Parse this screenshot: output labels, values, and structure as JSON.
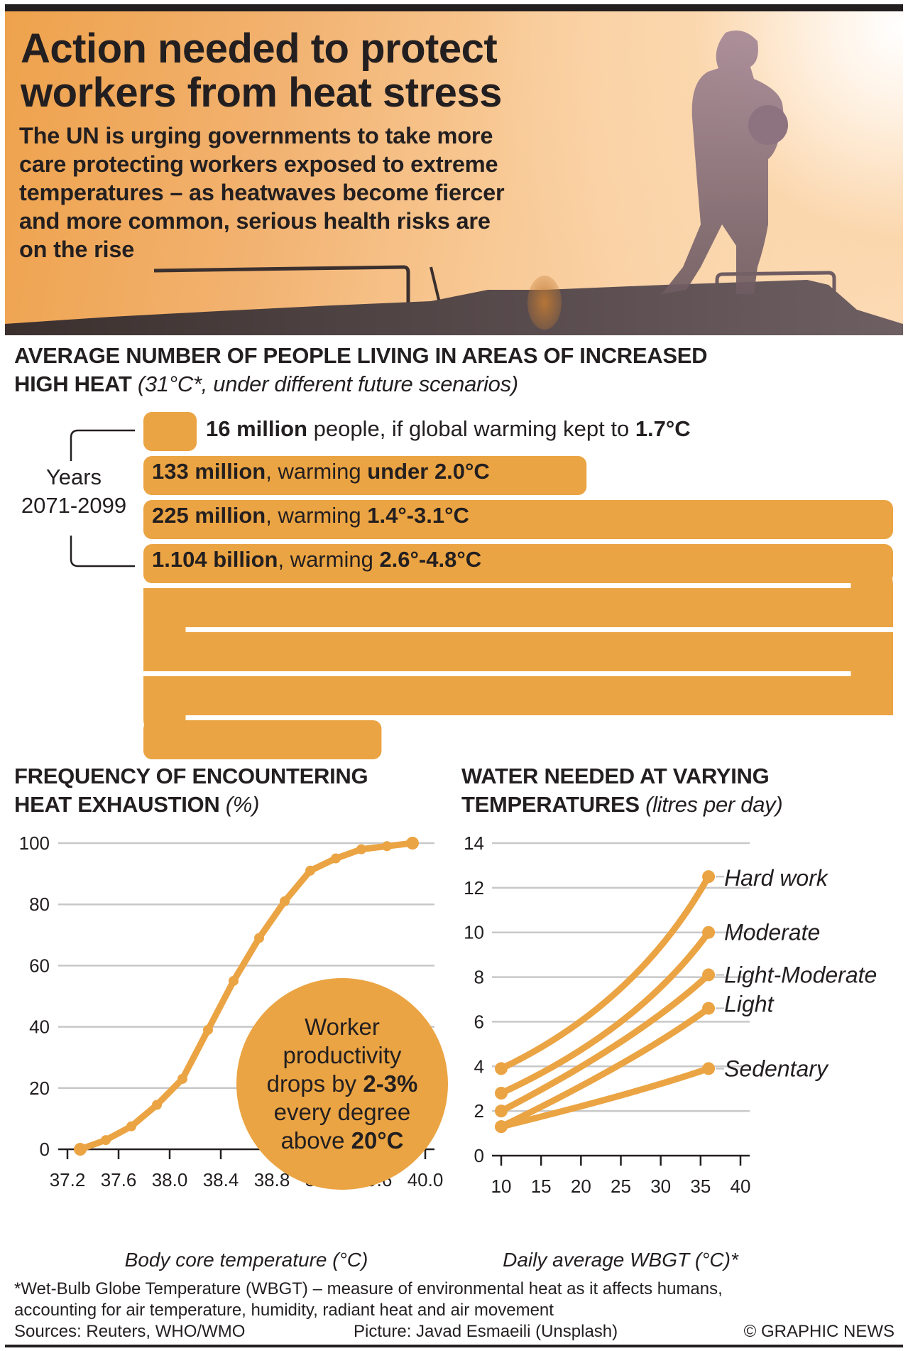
{
  "header": {
    "title_line1": "Action needed to protect",
    "title_line2": "workers from heat stress",
    "subtitle_lines": [
      "The UN is urging governments to take more",
      "care protecting workers exposed to extreme",
      "temperatures – as heatwaves become fiercer",
      "and more common, serious health risks are",
      "on the rise"
    ],
    "photo": "silhouette-of-worker-at-sunset"
  },
  "population": {
    "title_bold_line1": "AVERAGE NUMBER OF PEOPLE LIVING IN AREAS OF INCREASED",
    "title_bold_line2": "HIGH HEAT",
    "title_italic": "(31°C*, under different future scenarios)",
    "years_label": "Years",
    "years_range": "2071-2099",
    "bar_color": "#eba443",
    "rows": [
      {
        "amount": "16 million",
        "mid": " people, if global warming kept to ",
        "range": "1.7°C",
        "value_millions": 16
      },
      {
        "amount": "133 million",
        "mid": ", warming ",
        "range": "under 2.0°C",
        "value_millions": 133
      },
      {
        "amount": "225 million",
        "mid": ", warming ",
        "range": "1.4°-3.1°C",
        "value_millions": 225
      },
      {
        "amount": "1.104 billion",
        "mid": ", warming ",
        "range": "2.6°-4.8°C",
        "value_millions": 1104
      }
    ]
  },
  "heat_exhaustion": {
    "title_bold_line1": "FREQUENCY OF ENCOUNTERING",
    "title_bold_line2": "HEAT EXHAUSTION",
    "title_italic": "(%)",
    "bubble": {
      "line1": "Worker",
      "line2": "productivity",
      "line3_pre": "drops by ",
      "line3_bold": "2-3%",
      "line4": "every degree",
      "line5_pre": "above ",
      "line5_bold": "20°C"
    }
  },
  "water": {
    "title_bold_line1": "WATER NEEDED AT VARYING",
    "title_bold_line2": "TEMPERATURES",
    "title_italic": "(litres per day)"
  },
  "footer": {
    "footnote_line1": "*Wet-Bulb Globe Temperature (WBGT) – measure of environmental heat as it affects humans,",
    "footnote_line2": "accounting for air temperature, humidity, radiant heat and air movement",
    "sources": "Sources: Reuters, WHO/WMO",
    "picture": "Picture: Javad Esmaeili (Unsplash)",
    "credit": "© GRAPHIC NEWS"
  },
  "chart_data": [
    {
      "type": "bar",
      "title": "Average number of people living in areas of increased high heat (31°C*, under different future scenarios)",
      "categories": [
        "Warming kept to 1.7°C",
        "Warming under 2.0°C",
        "Warming 1.4°-3.1°C",
        "Warming 2.6°-4.8°C"
      ],
      "values": [
        16,
        133,
        225,
        1104
      ],
      "unit": "million people",
      "group_label": "Years 2071-2099"
    },
    {
      "type": "line",
      "title": "Frequency of encountering heat exhaustion (%)",
      "xlabel": "Body core temperature (°C)",
      "ylabel": "%",
      "xlim": [
        37.2,
        40.0
      ],
      "ylim": [
        0,
        100
      ],
      "xticks": [
        37.2,
        37.6,
        38.0,
        38.4,
        38.8,
        39.2,
        39.6,
        40.0
      ],
      "xtick_labels": [
        "37.2",
        "37.6",
        "38.0",
        "38.4",
        "38.8",
        "39.2",
        "39.6",
        "40.0"
      ],
      "yticks": [
        0,
        20,
        40,
        60,
        80,
        100
      ],
      "ytick_labels": [
        "0",
        "20",
        "40",
        "60",
        "80",
        "100"
      ],
      "grid": true,
      "series": [
        {
          "name": "Heat exhaustion frequency",
          "x": [
            37.3,
            37.5,
            37.7,
            37.9,
            38.1,
            38.3,
            38.5,
            38.7,
            38.9,
            39.1,
            39.3,
            39.5,
            39.7,
            39.9
          ],
          "y": [
            0,
            3,
            7.5,
            14.5,
            23,
            39,
            55,
            69,
            81,
            91,
            95,
            98,
            99,
            100
          ]
        }
      ],
      "annotation": "Worker productivity drops by 2-3% every degree above 20°C",
      "color": "#eba443"
    },
    {
      "type": "line",
      "title": "Water needed at varying temperatures (litres per day)",
      "xlabel": "Daily average WBGT (°C)*",
      "ylabel": "litres per day",
      "xlim": [
        10,
        40
      ],
      "ylim": [
        0,
        14
      ],
      "xticks": [
        10,
        15,
        20,
        25,
        30,
        35,
        40
      ],
      "xtick_labels": [
        "10",
        "15",
        "20",
        "25",
        "30",
        "35",
        "40"
      ],
      "yticks": [
        0,
        2,
        4,
        6,
        8,
        10,
        12,
        14
      ],
      "ytick_labels": [
        "0",
        "2",
        "4",
        "6",
        "8",
        "10",
        "12",
        "14"
      ],
      "grid": true,
      "legend": "inline-right",
      "series": [
        {
          "name": "Hard work",
          "x": [
            10,
            25,
            36
          ],
          "y": [
            3.9,
            7.5,
            12.5
          ]
        },
        {
          "name": "Moderate",
          "x": [
            10,
            25,
            36
          ],
          "y": [
            2.8,
            6.0,
            10.0
          ]
        },
        {
          "name": "Light-Moderate",
          "x": [
            10,
            25,
            36
          ],
          "y": [
            2.0,
            5.1,
            8.1
          ]
        },
        {
          "name": "Light",
          "x": [
            10,
            25,
            36
          ],
          "y": [
            1.3,
            4.1,
            6.6
          ]
        },
        {
          "name": "Sedentary",
          "x": [
            10,
            25,
            36
          ],
          "y": [
            1.3,
            2.7,
            3.9
          ]
        }
      ],
      "color": "#eba443"
    }
  ]
}
